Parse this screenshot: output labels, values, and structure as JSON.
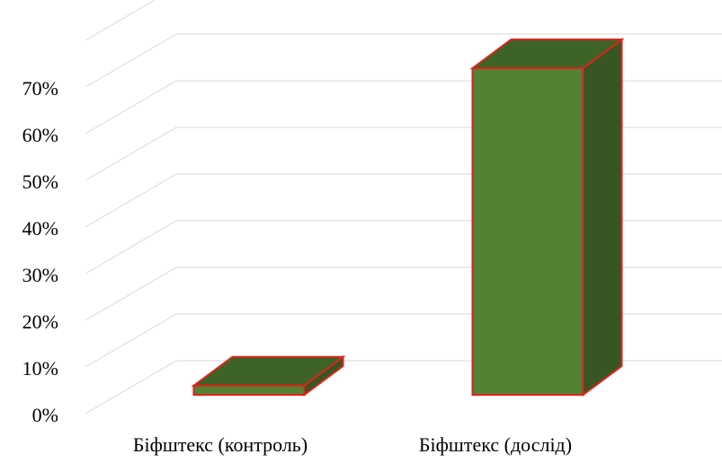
{
  "chart_data": {
    "type": "bar",
    "style": "3d-column",
    "title": "",
    "xlabel": "",
    "ylabel": "",
    "categories": [
      "Біфштекс (контроль)",
      "Біфштекс (дослід)"
    ],
    "series": [
      {
        "values": [
          2,
          71
        ],
        "color": "#548235",
        "top_color": "#3e6327",
        "side_color": "#375623",
        "edge_color": "#e0221b"
      }
    ],
    "y_unit": "%",
    "ylim": [
      0,
      80
    ],
    "y_ticks": [
      0,
      10,
      20,
      30,
      40,
      50,
      60,
      70
    ],
    "y_tick_labels": [
      "0%",
      "10%",
      "20%",
      "30%",
      "40%",
      "50%",
      "60%",
      "70%"
    ],
    "grid": true,
    "gridline_color": "#d9d9d9",
    "legend": "none"
  }
}
